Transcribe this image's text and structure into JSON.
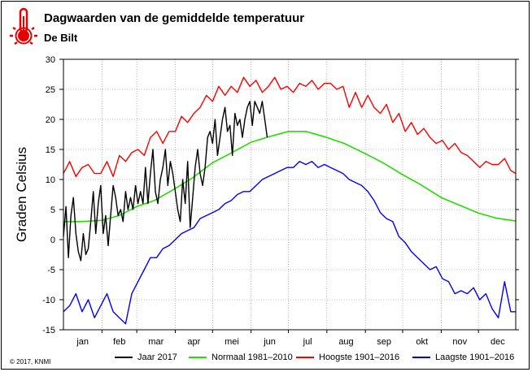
{
  "header": {
    "title": "Dagwaarden van de gemiddelde temperatuur",
    "subtitle": "De Bilt",
    "copyright": "© 2017, KNMI"
  },
  "icon": "thermometer-icon",
  "chart_data": {
    "type": "line",
    "title": "Dagwaarden van de gemiddelde temperatuur",
    "subtitle": "De Bilt",
    "xlabel": "",
    "ylabel": "Graden Celsius",
    "ylim": [
      -15,
      30
    ],
    "yticks": [
      -15,
      -10,
      -5,
      0,
      5,
      10,
      15,
      20,
      25,
      30
    ],
    "xlim": [
      1,
      365
    ],
    "month_labels": [
      "jan",
      "feb",
      "mar",
      "apr",
      "mei",
      "jun",
      "jul",
      "aug",
      "sep",
      "okt",
      "nov",
      "dec"
    ],
    "grid": true,
    "legend": "bottom",
    "series": [
      {
        "name": "Jaar 2017",
        "color": "#000000",
        "x": [
          1,
          3,
          5,
          7,
          9,
          11,
          13,
          15,
          17,
          19,
          21,
          23,
          25,
          27,
          29,
          31,
          33,
          35,
          37,
          39,
          41,
          43,
          45,
          47,
          49,
          51,
          53,
          55,
          57,
          59,
          61,
          63,
          65,
          67,
          69,
          71,
          73,
          75,
          77,
          79,
          81,
          83,
          85,
          87,
          89,
          91,
          93,
          95,
          97,
          99,
          101,
          103,
          105,
          107,
          109,
          111,
          113,
          115,
          117,
          119,
          121,
          123,
          125,
          127,
          129,
          131,
          133,
          135,
          137,
          139,
          141,
          143,
          145,
          147,
          149,
          151,
          153,
          155,
          157,
          159,
          161,
          163,
          165
        ],
        "values": [
          0.5,
          5.5,
          -3,
          4,
          7,
          1,
          -2,
          -3.5,
          1,
          -2.5,
          -1.5,
          3,
          8,
          1,
          6,
          9,
          1,
          4,
          -1,
          4,
          9,
          7,
          4,
          5,
          3,
          8,
          5,
          7,
          5,
          9,
          6,
          8,
          6,
          12,
          6,
          11,
          15,
          8,
          6,
          10,
          12,
          15,
          9,
          13,
          11,
          8,
          5,
          3,
          10,
          6,
          13,
          2,
          7,
          12,
          15,
          11,
          9,
          12,
          17,
          18,
          16,
          20,
          14,
          17,
          20,
          22,
          18,
          19,
          14,
          21,
          19,
          20,
          17,
          20,
          22,
          23,
          19,
          23,
          22,
          21,
          23,
          20,
          17
        ]
      },
      {
        "name": "Normaal 1981–2010",
        "color": "#22dd00",
        "x": [
          1,
          15,
          32,
          46,
          60,
          74,
          91,
          105,
          121,
          135,
          152,
          166,
          182,
          196,
          213,
          227,
          244,
          258,
          274,
          288,
          305,
          319,
          335,
          349,
          365
        ],
        "values": [
          3,
          3,
          3.2,
          4,
          5.5,
          6.5,
          8.5,
          10.3,
          12.8,
          14.3,
          16.2,
          17.1,
          18,
          18,
          17,
          16,
          14.3,
          12.8,
          10.8,
          9.2,
          7,
          5.8,
          4.4,
          3.6,
          3.1
        ]
      },
      {
        "name": "Hoogste 1901–2016",
        "color": "#ff0000",
        "x": [
          1,
          6,
          11,
          16,
          21,
          26,
          31,
          36,
          41,
          46,
          51,
          56,
          61,
          66,
          71,
          76,
          81,
          86,
          91,
          96,
          101,
          106,
          111,
          116,
          121,
          126,
          131,
          136,
          141,
          146,
          151,
          156,
          161,
          166,
          171,
          176,
          181,
          186,
          191,
          196,
          201,
          206,
          211,
          216,
          221,
          226,
          231,
          236,
          241,
          246,
          251,
          256,
          261,
          266,
          271,
          276,
          281,
          286,
          291,
          296,
          301,
          306,
          311,
          316,
          321,
          326,
          331,
          336,
          341,
          346,
          351,
          356,
          361,
          365
        ],
        "values": [
          11,
          13,
          10.5,
          12,
          12.5,
          11,
          11,
          13,
          10.5,
          14,
          13,
          14.5,
          15,
          14,
          17,
          18,
          16,
          18,
          18,
          20.5,
          19.5,
          21,
          22,
          24,
          23,
          25.5,
          24,
          25.5,
          24.5,
          27,
          25.5,
          26.5,
          24.5,
          25.5,
          27,
          25,
          25.5,
          24.5,
          26,
          25.5,
          26.5,
          25,
          26,
          26,
          25,
          25.5,
          22,
          24.5,
          22,
          24,
          22,
          21,
          22.5,
          19.5,
          21,
          18,
          19.5,
          17.5,
          18.5,
          17,
          16,
          16.5,
          15,
          16,
          14.5,
          14,
          13,
          12,
          13,
          12.5,
          12.5,
          13.5,
          11.5,
          11
        ]
      },
      {
        "name": "Laagste 1901–2016",
        "color": "#0000ff",
        "x": [
          1,
          6,
          11,
          16,
          21,
          26,
          31,
          36,
          41,
          46,
          51,
          56,
          61,
          66,
          71,
          76,
          81,
          86,
          91,
          96,
          101,
          106,
          111,
          116,
          121,
          126,
          131,
          136,
          141,
          146,
          151,
          156,
          161,
          166,
          171,
          176,
          181,
          186,
          191,
          196,
          201,
          206,
          211,
          216,
          221,
          226,
          231,
          236,
          241,
          246,
          251,
          256,
          261,
          266,
          271,
          276,
          281,
          286,
          291,
          296,
          301,
          306,
          311,
          316,
          321,
          326,
          331,
          336,
          341,
          346,
          351,
          356,
          361,
          365
        ],
        "values": [
          -12,
          -11,
          -9,
          -12,
          -10,
          -13,
          -11,
          -9,
          -12,
          -13,
          -14,
          -9,
          -7,
          -5,
          -3,
          -3,
          -1.5,
          -1,
          0,
          1,
          1.5,
          2,
          3.5,
          4,
          4.5,
          5,
          6,
          6.5,
          7.5,
          8,
          8,
          9,
          10,
          10.5,
          11,
          11.5,
          12,
          12,
          13,
          12.5,
          13,
          12,
          12.5,
          12,
          11.5,
          11,
          10,
          9.5,
          9,
          8,
          6.5,
          4.5,
          3.5,
          3,
          0.5,
          -0.5,
          -2,
          -3,
          -4,
          -5,
          -4.5,
          -6.5,
          -7,
          -9,
          -8.5,
          -9,
          -8,
          -10,
          -9,
          -11.5,
          -13,
          -7,
          -12,
          -12
        ]
      }
    ]
  }
}
